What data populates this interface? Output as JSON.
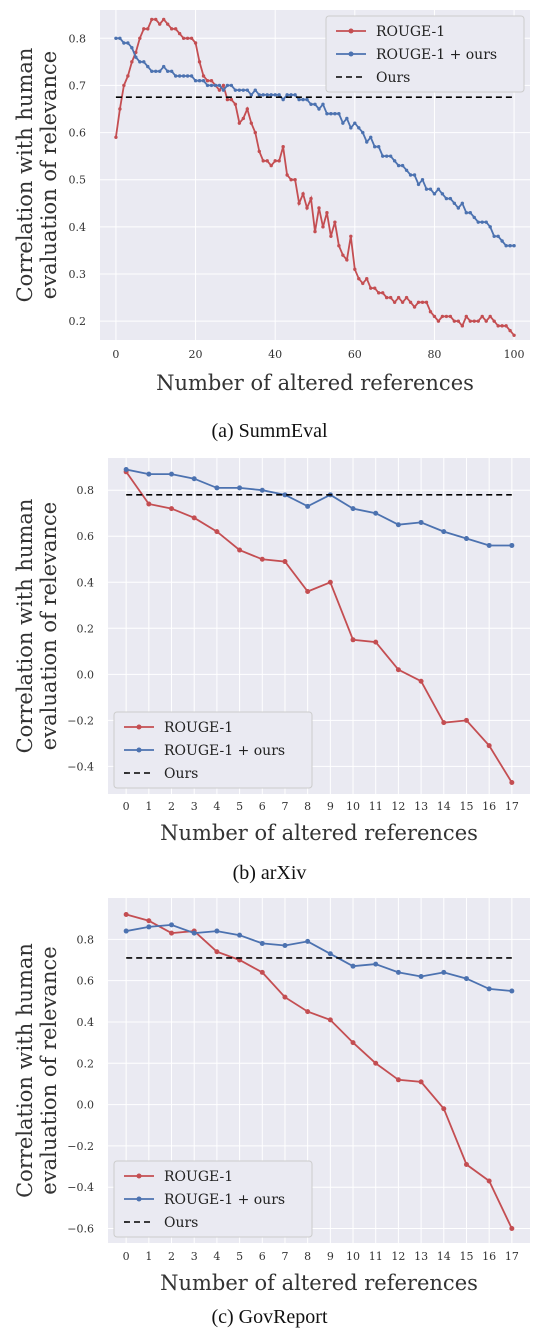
{
  "chart_data": [
    {
      "type": "line",
      "caption": "(a) SummEval",
      "xlabel": "Number of altered references",
      "ylabel": [
        "Correlation with human",
        "evaluation of relevance"
      ],
      "xlim": [
        -4,
        104
      ],
      "ylim": [
        0.16,
        0.86
      ],
      "xticks": [
        0,
        20,
        40,
        60,
        80,
        100
      ],
      "xtick_labels": [
        "0",
        "20",
        "40",
        "60",
        "80",
        "100"
      ],
      "yticks": [
        0.2,
        0.3,
        0.4,
        0.5,
        0.6,
        0.7,
        0.8
      ],
      "ytick_labels": [
        "0.2",
        "0.3",
        "0.4",
        "0.5",
        "0.6",
        "0.7",
        "0.8"
      ],
      "legend_position": "top-right",
      "grid": true,
      "colors": {
        "rouge": "#c44e52",
        "ours_plus": "#4c72b0",
        "ours": "#000000"
      },
      "series": [
        {
          "name": "ROUGE-1",
          "color": "#c44e52",
          "x": [
            0,
            1,
            2,
            3,
            4,
            5,
            6,
            7,
            8,
            9,
            10,
            11,
            12,
            13,
            14,
            15,
            16,
            17,
            18,
            19,
            20,
            21,
            22,
            23,
            24,
            25,
            26,
            27,
            28,
            29,
            30,
            31,
            32,
            33,
            34,
            35,
            36,
            37,
            38,
            39,
            40,
            41,
            42,
            43,
            44,
            45,
            46,
            47,
            48,
            49,
            50,
            51,
            52,
            53,
            54,
            55,
            56,
            57,
            58,
            59,
            60,
            61,
            62,
            63,
            64,
            65,
            66,
            67,
            68,
            69,
            70,
            71,
            72,
            73,
            74,
            75,
            76,
            77,
            78,
            79,
            80,
            81,
            82,
            83,
            84,
            85,
            86,
            87,
            88,
            89,
            90,
            91,
            92,
            93,
            94,
            95,
            96,
            97,
            98,
            99,
            100
          ],
          "y": [
            0.59,
            0.65,
            0.7,
            0.72,
            0.75,
            0.77,
            0.8,
            0.82,
            0.82,
            0.84,
            0.84,
            0.83,
            0.84,
            0.83,
            0.82,
            0.82,
            0.81,
            0.8,
            0.8,
            0.8,
            0.79,
            0.75,
            0.72,
            0.71,
            0.71,
            0.7,
            0.69,
            0.7,
            0.67,
            0.67,
            0.66,
            0.62,
            0.63,
            0.65,
            0.62,
            0.6,
            0.56,
            0.54,
            0.54,
            0.53,
            0.54,
            0.54,
            0.57,
            0.51,
            0.5,
            0.5,
            0.45,
            0.47,
            0.44,
            0.46,
            0.39,
            0.44,
            0.4,
            0.43,
            0.38,
            0.41,
            0.36,
            0.34,
            0.33,
            0.38,
            0.31,
            0.29,
            0.28,
            0.29,
            0.27,
            0.27,
            0.26,
            0.26,
            0.25,
            0.25,
            0.24,
            0.25,
            0.24,
            0.25,
            0.24,
            0.23,
            0.24,
            0.24,
            0.24,
            0.22,
            0.21,
            0.2,
            0.21,
            0.21,
            0.21,
            0.2,
            0.2,
            0.19,
            0.21,
            0.2,
            0.2,
            0.2,
            0.21,
            0.2,
            0.21,
            0.2,
            0.19,
            0.19,
            0.19,
            0.18,
            0.17
          ]
        },
        {
          "name": "ROUGE-1 + ours",
          "color": "#4c72b0",
          "x": [
            0,
            1,
            2,
            3,
            4,
            5,
            6,
            7,
            8,
            9,
            10,
            11,
            12,
            13,
            14,
            15,
            16,
            17,
            18,
            19,
            20,
            21,
            22,
            23,
            24,
            25,
            26,
            27,
            28,
            29,
            30,
            31,
            32,
            33,
            34,
            35,
            36,
            37,
            38,
            39,
            40,
            41,
            42,
            43,
            44,
            45,
            46,
            47,
            48,
            49,
            50,
            51,
            52,
            53,
            54,
            55,
            56,
            57,
            58,
            59,
            60,
            61,
            62,
            63,
            64,
            65,
            66,
            67,
            68,
            69,
            70,
            71,
            72,
            73,
            74,
            75,
            76,
            77,
            78,
            79,
            80,
            81,
            82,
            83,
            84,
            85,
            86,
            87,
            88,
            89,
            90,
            91,
            92,
            93,
            94,
            95,
            96,
            97,
            98,
            99,
            100
          ],
          "y": [
            0.8,
            0.8,
            0.79,
            0.79,
            0.78,
            0.76,
            0.75,
            0.75,
            0.74,
            0.73,
            0.73,
            0.73,
            0.74,
            0.73,
            0.73,
            0.72,
            0.72,
            0.72,
            0.72,
            0.72,
            0.71,
            0.71,
            0.71,
            0.7,
            0.7,
            0.7,
            0.7,
            0.69,
            0.7,
            0.7,
            0.69,
            0.69,
            0.69,
            0.69,
            0.68,
            0.69,
            0.68,
            0.68,
            0.68,
            0.68,
            0.68,
            0.68,
            0.67,
            0.68,
            0.68,
            0.68,
            0.67,
            0.67,
            0.67,
            0.66,
            0.66,
            0.65,
            0.66,
            0.64,
            0.64,
            0.64,
            0.64,
            0.62,
            0.63,
            0.61,
            0.62,
            0.61,
            0.6,
            0.58,
            0.59,
            0.57,
            0.57,
            0.55,
            0.55,
            0.55,
            0.54,
            0.53,
            0.53,
            0.52,
            0.51,
            0.51,
            0.49,
            0.5,
            0.48,
            0.48,
            0.47,
            0.48,
            0.47,
            0.46,
            0.46,
            0.45,
            0.44,
            0.45,
            0.43,
            0.43,
            0.42,
            0.41,
            0.41,
            0.41,
            0.4,
            0.38,
            0.38,
            0.37,
            0.36,
            0.36,
            0.36
          ]
        },
        {
          "name": "Ours",
          "color": "#000000",
          "dashed": true,
          "x": [
            0,
            100
          ],
          "y": [
            0.675,
            0.675
          ]
        }
      ]
    },
    {
      "type": "line",
      "caption": "(b) arXiv",
      "xlabel": "Number of altered references",
      "ylabel": [
        "Correlation with human",
        "evaluation of relevance"
      ],
      "xlim": [
        -0.8,
        17.8
      ],
      "ylim": [
        -0.52,
        0.94
      ],
      "xticks": [
        0,
        1,
        2,
        3,
        4,
        5,
        6,
        7,
        8,
        9,
        10,
        11,
        12,
        13,
        14,
        15,
        16,
        17
      ],
      "xtick_labels": [
        "0",
        "1",
        "2",
        "3",
        "4",
        "5",
        "6",
        "7",
        "8",
        "9",
        "10",
        "11",
        "12",
        "13",
        "14",
        "15",
        "16",
        "17"
      ],
      "yticks": [
        -0.4,
        -0.2,
        0.0,
        0.2,
        0.4,
        0.6,
        0.8
      ],
      "ytick_labels": [
        "−0.4",
        "−0.2",
        "0.0",
        "0.2",
        "0.4",
        "0.6",
        "0.8"
      ],
      "legend_position": "bottom-left",
      "grid": true,
      "series": [
        {
          "name": "ROUGE-1",
          "color": "#c44e52",
          "x": [
            0,
            1,
            2,
            3,
            4,
            5,
            6,
            7,
            8,
            9,
            10,
            11,
            12,
            13,
            14,
            15,
            16,
            17
          ],
          "y": [
            0.88,
            0.74,
            0.72,
            0.68,
            0.62,
            0.54,
            0.5,
            0.49,
            0.36,
            0.4,
            0.15,
            0.14,
            0.02,
            -0.03,
            -0.21,
            -0.2,
            -0.31,
            -0.47
          ]
        },
        {
          "name": "ROUGE-1 + ours",
          "color": "#4c72b0",
          "x": [
            0,
            1,
            2,
            3,
            4,
            5,
            6,
            7,
            8,
            9,
            10,
            11,
            12,
            13,
            14,
            15,
            16,
            17
          ],
          "y": [
            0.89,
            0.87,
            0.87,
            0.85,
            0.81,
            0.81,
            0.8,
            0.78,
            0.73,
            0.78,
            0.72,
            0.7,
            0.65,
            0.66,
            0.62,
            0.59,
            0.56,
            0.56
          ]
        },
        {
          "name": "Ours",
          "color": "#000000",
          "dashed": true,
          "x": [
            0,
            17
          ],
          "y": [
            0.78,
            0.78
          ]
        }
      ]
    },
    {
      "type": "line",
      "caption": "(c) GovReport",
      "xlabel": "Number of altered references",
      "ylabel": [
        "Correlation with human",
        "evaluation of relevance"
      ],
      "xlim": [
        -0.8,
        17.8
      ],
      "ylim": [
        -0.67,
        1.0
      ],
      "xticks": [
        0,
        1,
        2,
        3,
        4,
        5,
        6,
        7,
        8,
        9,
        10,
        11,
        12,
        13,
        14,
        15,
        16,
        17
      ],
      "xtick_labels": [
        "0",
        "1",
        "2",
        "3",
        "4",
        "5",
        "6",
        "7",
        "8",
        "9",
        "10",
        "11",
        "12",
        "13",
        "14",
        "15",
        "16",
        "17"
      ],
      "yticks": [
        -0.6,
        -0.4,
        -0.2,
        0.0,
        0.2,
        0.4,
        0.6,
        0.8
      ],
      "ytick_labels": [
        "−0.6",
        "−0.4",
        "−0.2",
        "0.0",
        "0.2",
        "0.4",
        "0.6",
        "0.8"
      ],
      "legend_position": "bottom-left",
      "grid": true,
      "series": [
        {
          "name": "ROUGE-1",
          "color": "#c44e52",
          "x": [
            0,
            1,
            2,
            3,
            4,
            5,
            6,
            7,
            8,
            9,
            10,
            11,
            12,
            13,
            14,
            15,
            16,
            17
          ],
          "y": [
            0.92,
            0.89,
            0.83,
            0.84,
            0.74,
            0.7,
            0.64,
            0.52,
            0.45,
            0.41,
            0.3,
            0.2,
            0.12,
            0.11,
            -0.02,
            -0.29,
            -0.37,
            -0.6
          ]
        },
        {
          "name": "ROUGE-1 + ours",
          "color": "#4c72b0",
          "x": [
            0,
            1,
            2,
            3,
            4,
            5,
            6,
            7,
            8,
            9,
            10,
            11,
            12,
            13,
            14,
            15,
            16,
            17
          ],
          "y": [
            0.84,
            0.86,
            0.87,
            0.83,
            0.84,
            0.82,
            0.78,
            0.77,
            0.79,
            0.73,
            0.67,
            0.68,
            0.64,
            0.62,
            0.64,
            0.61,
            0.56,
            0.55
          ]
        },
        {
          "name": "Ours",
          "color": "#000000",
          "dashed": true,
          "x": [
            0,
            17
          ],
          "y": [
            0.71,
            0.71
          ]
        }
      ]
    }
  ]
}
